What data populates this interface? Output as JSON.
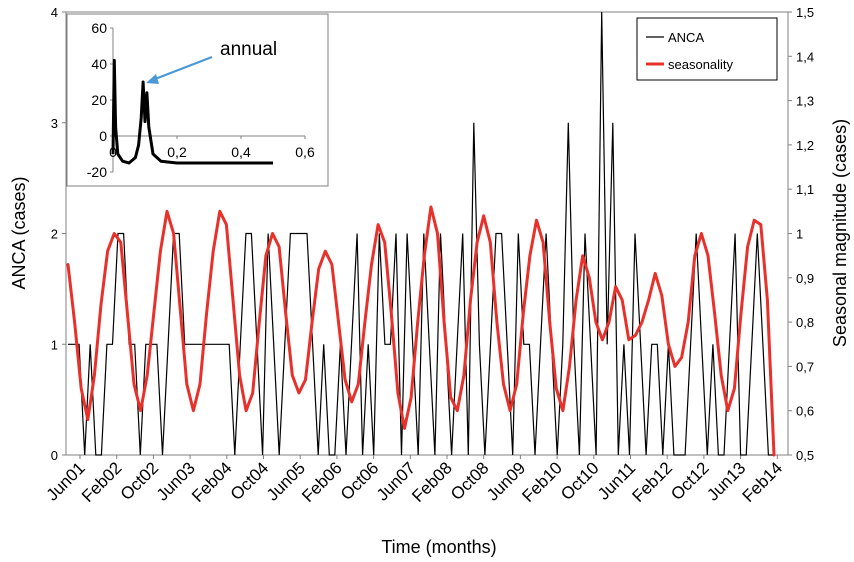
{
  "chart_data": {
    "type": "line",
    "xlabel": "Time (months)",
    "ylabel_left": "ANCA (cases)",
    "ylabel_right": "Seasonal magnitude (cases)",
    "y_left_range": [
      0,
      4
    ],
    "y_left_ticks": [
      "0",
      "1",
      "2",
      "3",
      "4"
    ],
    "y_right_range": [
      0.5,
      1.5
    ],
    "y_right_ticks": [
      "0,5",
      "0,6",
      "0,7",
      "0,8",
      "0,9",
      "1",
      "1,1",
      "1,2",
      "1,3",
      "1,4",
      "1,5"
    ],
    "x_tick_labels": [
      "Jun01",
      "Feb02",
      "Oct02",
      "Jun03",
      "Feb04",
      "Oct04",
      "Jun05",
      "Feb06",
      "Oct06",
      "Jun07",
      "Feb08",
      "Oct08",
      "Jun09",
      "Feb10",
      "Oct10",
      "Jun11",
      "Feb12",
      "Oct12",
      "Jun13",
      "Feb14"
    ],
    "legend": [
      "ANCA",
      "seasonality"
    ],
    "legend_position": "top-right",
    "grid": false,
    "series": [
      {
        "name": "ANCA",
        "color": "#000000",
        "axis": "left",
        "values": [
          1,
          1,
          1,
          0,
          1,
          0,
          0,
          1,
          1,
          2,
          2,
          1,
          1,
          0,
          1,
          1,
          1,
          0,
          1,
          2,
          2,
          1,
          1,
          1,
          1,
          1,
          1,
          1,
          1,
          1,
          0,
          1,
          2,
          2,
          1,
          0,
          2,
          1,
          0,
          1,
          2,
          2,
          2,
          2,
          1,
          0,
          1,
          0,
          0,
          1,
          0,
          1,
          2,
          0,
          1,
          0,
          2,
          1,
          1,
          2,
          0,
          2,
          1,
          0,
          2,
          1,
          0,
          2,
          1,
          0,
          1,
          2,
          0,
          3,
          1,
          0,
          1,
          2,
          2,
          1,
          0,
          2,
          1,
          1,
          0,
          1,
          2,
          1,
          0,
          1,
          3,
          1,
          0,
          2,
          1,
          0,
          4,
          1,
          3,
          0,
          1,
          0,
          2,
          1,
          0,
          1,
          1,
          0,
          1,
          0,
          0,
          0,
          1,
          2,
          1,
          0,
          1,
          0,
          0,
          1,
          2,
          0,
          0,
          1,
          2,
          1,
          0,
          0
        ]
      },
      {
        "name": "seasonality",
        "color": "#e8312a",
        "axis": "right",
        "values": [
          0.93,
          0.8,
          0.65,
          0.58,
          0.68,
          0.84,
          0.96,
          1.0,
          0.98,
          0.82,
          0.66,
          0.6,
          0.68,
          0.82,
          0.96,
          1.05,
          1.0,
          0.83,
          0.66,
          0.6,
          0.66,
          0.82,
          0.96,
          1.05,
          1.02,
          0.85,
          0.68,
          0.6,
          0.64,
          0.8,
          0.95,
          1.0,
          0.97,
          0.82,
          0.68,
          0.64,
          0.67,
          0.8,
          0.92,
          0.96,
          0.93,
          0.8,
          0.67,
          0.62,
          0.66,
          0.8,
          0.93,
          1.02,
          0.98,
          0.82,
          0.64,
          0.56,
          0.63,
          0.8,
          0.95,
          1.06,
          1.0,
          0.8,
          0.63,
          0.6,
          0.68,
          0.85,
          0.98,
          1.04,
          0.98,
          0.8,
          0.66,
          0.6,
          0.66,
          0.82,
          0.95,
          1.03,
          0.98,
          0.8,
          0.65,
          0.6,
          0.7,
          0.85,
          0.95,
          0.9,
          0.8,
          0.76,
          0.8,
          0.88,
          0.85,
          0.76,
          0.77,
          0.8,
          0.85,
          0.91,
          0.86,
          0.75,
          0.7,
          0.72,
          0.8,
          0.95,
          1.0,
          0.95,
          0.82,
          0.68,
          0.6,
          0.65,
          0.82,
          0.97,
          1.03,
          1.02,
          0.85,
          0.5
        ]
      }
    ],
    "inset": {
      "annotation": "annual",
      "x_ticks": [
        "0",
        "0,2",
        "0,4",
        "0,6"
      ],
      "y_ticks": [
        "60",
        "40",
        "20",
        "0",
        "-20"
      ],
      "x_range": [
        0,
        0.6
      ],
      "y_range": [
        -20,
        60
      ],
      "points": [
        [
          0.0,
          -10
        ],
        [
          0.004,
          42
        ],
        [
          0.008,
          5
        ],
        [
          0.015,
          -10
        ],
        [
          0.03,
          -14
        ],
        [
          0.05,
          -15
        ],
        [
          0.07,
          -12
        ],
        [
          0.08,
          -5
        ],
        [
          0.088,
          10
        ],
        [
          0.094,
          30
        ],
        [
          0.1,
          8
        ],
        [
          0.106,
          24
        ],
        [
          0.112,
          5
        ],
        [
          0.125,
          -10
        ],
        [
          0.15,
          -14
        ],
        [
          0.2,
          -15
        ],
        [
          0.3,
          -15
        ],
        [
          0.4,
          -15
        ],
        [
          0.5,
          -15
        ]
      ]
    }
  }
}
